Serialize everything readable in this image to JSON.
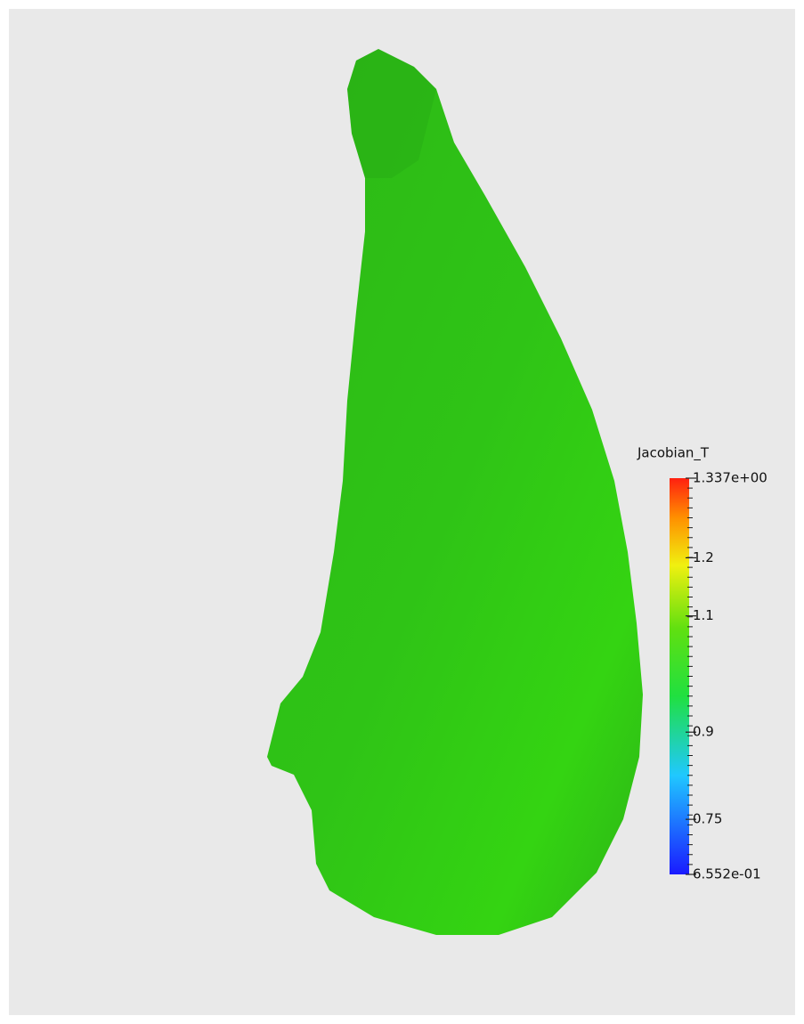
{
  "colorbar": {
    "title": "Jacobian_T",
    "ticks": [
      {
        "value": 1.337,
        "label": "1.337e+00"
      },
      1.2,
      1.1,
      0.9,
      0.75,
      {
        "value": 0.6552,
        "label": "6.552e-01"
      }
    ]
  }
}
